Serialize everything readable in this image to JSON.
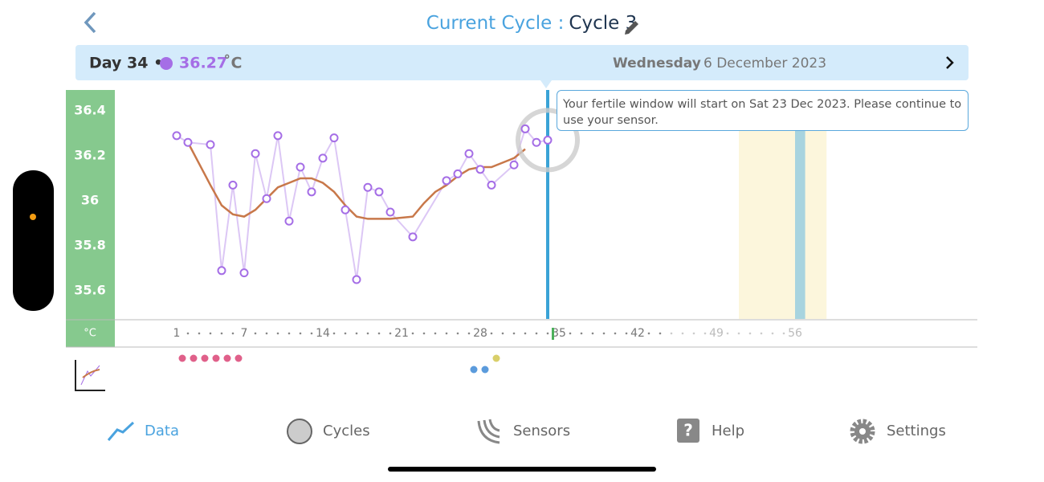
{
  "header": {
    "title_prefix": "Current Cycle :",
    "title_cycle": "Cycle 3",
    "day": "Day 34 •",
    "temperature": "36.27",
    "temperature_unit": "˚C",
    "weekday": "Wednesday",
    "date": "6 December 2023"
  },
  "tooltip": "Your fertile window will start on Sat 23 Dec 2023. Please continue to use your sensor.",
  "axis_unit": "°C",
  "nav": [
    "Data",
    "Cycles",
    "Sensors",
    "Help",
    "Settings"
  ],
  "chart_data": {
    "type": "line",
    "xlim": [
      -4.5,
      72.214
    ],
    "ylim": [
      35.475,
      36.493
    ],
    "yticks": [
      35.6,
      35.8,
      36,
      36.2,
      36.4
    ],
    "xticks": [
      1,
      7,
      14,
      21,
      28,
      35,
      42,
      49,
      56
    ],
    "selected_day": 34,
    "fertile_window": [
      51,
      58.8
    ],
    "peak_day": [
      56,
      56.9
    ],
    "series": [
      {
        "color": "#a56ee6",
        "x": [
          1,
          2,
          4,
          5,
          6,
          7,
          8,
          9,
          10,
          11,
          12,
          13,
          14,
          15,
          16,
          17,
          18,
          19,
          20,
          22,
          25,
          26,
          27,
          28,
          29,
          31,
          32,
          33,
          34
        ],
        "values": [
          36.29,
          36.26,
          36.25,
          35.69,
          36.07,
          35.68,
          36.21,
          36.01,
          36.29,
          35.91,
          36.15,
          36.04,
          36.19,
          36.28,
          35.96,
          35.65,
          36.06,
          36.04,
          35.95,
          35.84,
          36.09,
          36.12,
          36.21,
          36.14,
          36.07,
          36.16,
          36.32,
          36.26,
          36.27
        ]
      },
      {
        "color": "#c8784a",
        "x": [
          2,
          4,
          5,
          6,
          7,
          8,
          9,
          10,
          11,
          12,
          13,
          14,
          15,
          16,
          17,
          18,
          19,
          20,
          22,
          23,
          24,
          25,
          26,
          27,
          28,
          29,
          31,
          32
        ],
        "values": [
          36.26,
          36.07,
          35.98,
          35.94,
          35.93,
          35.96,
          36.01,
          36.06,
          36.08,
          36.1,
          36.1,
          36.08,
          36.04,
          35.98,
          35.93,
          35.92,
          35.92,
          35.92,
          35.93,
          35.99,
          36.04,
          36.07,
          36.11,
          36.14,
          36.15,
          36.15,
          36.19,
          36.23
        ]
      }
    ]
  }
}
